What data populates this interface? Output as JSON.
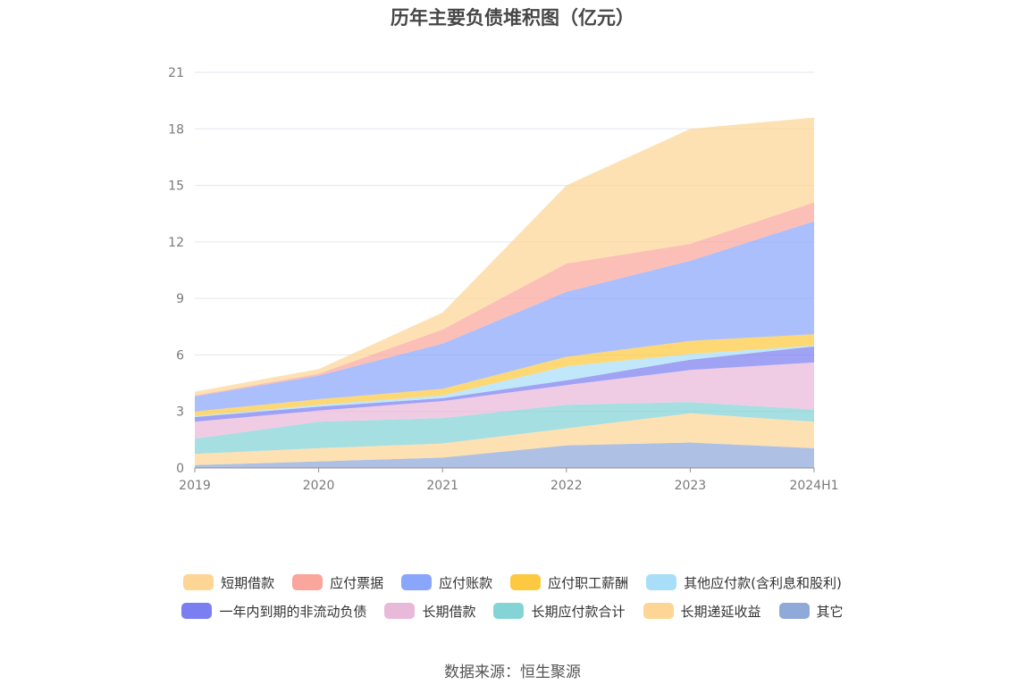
{
  "chart_data": {
    "type": "area",
    "stacked": true,
    "title": "历年主要负债堆积图（亿元）",
    "categories": [
      "2019",
      "2020",
      "2021",
      "2022",
      "2023",
      "2024H1"
    ],
    "ylim": [
      0,
      21
    ],
    "yticks": [
      "0",
      "3",
      "6",
      "9",
      "12",
      "15",
      "18",
      "21"
    ],
    "grid": true,
    "legend_position": "bottom",
    "series": [
      {
        "name": "其它",
        "color": "#8fa9d9",
        "values": [
          0.15,
          0.35,
          0.55,
          1.2,
          1.35,
          1.05
        ]
      },
      {
        "name": "长期递延收益",
        "color": "#fdd696",
        "values": [
          0.6,
          0.7,
          0.75,
          0.9,
          1.55,
          1.4
        ]
      },
      {
        "name": "长期应付款合计",
        "color": "#84d3d5",
        "values": [
          0.8,
          1.4,
          1.35,
          1.25,
          0.6,
          0.65
        ]
      },
      {
        "name": "长期借款",
        "color": "#e9b9da",
        "values": [
          0.9,
          0.6,
          0.9,
          1.05,
          1.7,
          2.5
        ]
      },
      {
        "name": "一年内到期的非流动负债",
        "color": "#7b7ef0",
        "values": [
          0.25,
          0.2,
          0.15,
          0.25,
          0.55,
          0.85
        ]
      },
      {
        "name": "其他应付款(含利息和股利)",
        "color": "#a9def8",
        "values": [
          0.05,
          0.1,
          0.15,
          0.75,
          0.3,
          0.05
        ]
      },
      {
        "name": "应付职工薪酬",
        "color": "#fcc940",
        "values": [
          0.25,
          0.3,
          0.35,
          0.5,
          0.7,
          0.6
        ]
      },
      {
        "name": "应付账款",
        "color": "#8aa6fb",
        "values": [
          0.8,
          1.25,
          2.4,
          3.45,
          4.25,
          6.0
        ]
      },
      {
        "name": "应付票据",
        "color": "#fba69d",
        "values": [
          0.05,
          0.1,
          0.75,
          1.5,
          0.9,
          1.0
        ]
      },
      {
        "name": "短期借款",
        "color": "#fdd696",
        "values": [
          0.2,
          0.25,
          0.9,
          4.15,
          6.1,
          4.5
        ]
      }
    ]
  },
  "legend_rows": [
    [
      {
        "label": "短期借款",
        "color": "#fdd696"
      },
      {
        "label": "应付票据",
        "color": "#fba69d"
      },
      {
        "label": "应付账款",
        "color": "#8aa6fb"
      },
      {
        "label": "应付职工薪酬",
        "color": "#fcc940"
      },
      {
        "label": "其他应付款(含利息和股利)",
        "color": "#a9def8"
      }
    ],
    [
      {
        "label": "一年内到期的非流动负债",
        "color": "#7b7ef0"
      },
      {
        "label": "长期借款",
        "color": "#e9b9da"
      },
      {
        "label": "长期应付款合计",
        "color": "#84d3d5"
      },
      {
        "label": "长期递延收益",
        "color": "#fdd696"
      },
      {
        "label": "其它",
        "color": "#8fa9d9"
      }
    ]
  ],
  "source": "数据来源：恒生聚源"
}
